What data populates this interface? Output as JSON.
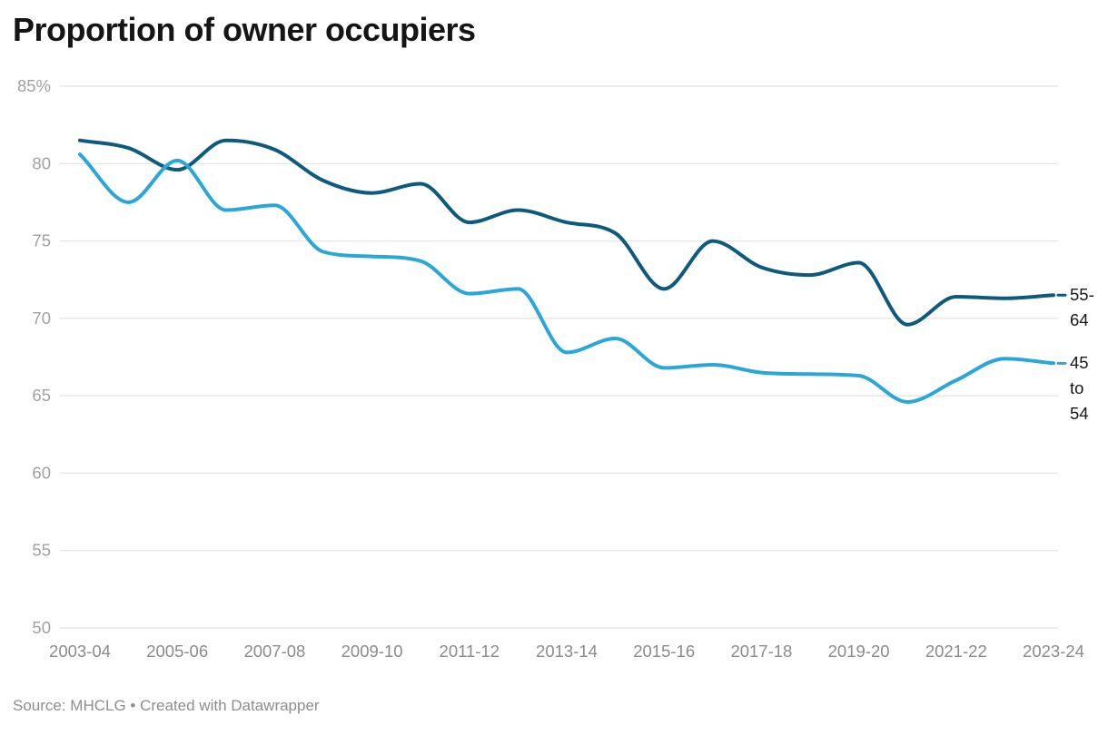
{
  "header": {
    "title": "Proportion of owner occupiers"
  },
  "footer": {
    "source": "Source: MHCLG • Created with Datawrapper"
  },
  "colors": {
    "series_dark": "#0e5a7c",
    "series_light": "#2ba7d7",
    "gridline": "#e6e6e6",
    "y_tick_label": "#a1a1a1",
    "x_tick_label": "#8b8b8b",
    "title": "#151515",
    "series_label_text": "#171717",
    "source_text": "#8d8d8d"
  },
  "chart_data": {
    "type": "line",
    "title": "Proportion of owner occupiers",
    "xlabel": "",
    "ylabel": "",
    "unit": "%",
    "ylim": [
      50,
      85
    ],
    "grid": "horizontal",
    "legend_position": "right-of-line-end",
    "x": [
      "2003-04",
      "2004-05",
      "2005-06",
      "2006-07",
      "2007-08",
      "2008-09",
      "2009-10",
      "2010-11",
      "2011-12",
      "2012-13",
      "2013-14",
      "2014-15",
      "2015-16",
      "2016-17",
      "2017-18",
      "2018-19",
      "2019-20",
      "2020-21",
      "2021-22",
      "2022-23",
      "2023-24"
    ],
    "x_tick_labels": [
      "2003-04",
      "2005-06",
      "2007-08",
      "2009-10",
      "2011-12",
      "2013-14",
      "2015-16",
      "2017-18",
      "2019-20",
      "2021-22",
      "2023-24"
    ],
    "y_ticks": [
      85,
      80,
      75,
      70,
      65,
      60,
      55,
      50
    ],
    "y_tick_labels": [
      "85%",
      "80",
      "75",
      "70",
      "65",
      "60",
      "55",
      "50"
    ],
    "series": [
      {
        "name": "55-64",
        "label": "55-64",
        "color": "#0e5a7c",
        "values": [
          81.5,
          81.0,
          79.6,
          81.5,
          80.9,
          78.9,
          78.1,
          78.7,
          76.2,
          77.0,
          76.2,
          75.5,
          71.9,
          75.0,
          73.3,
          72.8,
          73.6,
          69.6,
          71.4,
          71.3,
          71.5
        ]
      },
      {
        "name": "45 to 54",
        "label": "45 to 54",
        "color": "#2ba7d7",
        "values": [
          80.6,
          77.5,
          80.2,
          77.0,
          77.3,
          74.3,
          74.0,
          73.7,
          71.6,
          71.9,
          67.8,
          68.7,
          66.8,
          67.0,
          66.5,
          66.4,
          66.3,
          64.6,
          66.0,
          67.4,
          67.1
        ]
      }
    ]
  }
}
